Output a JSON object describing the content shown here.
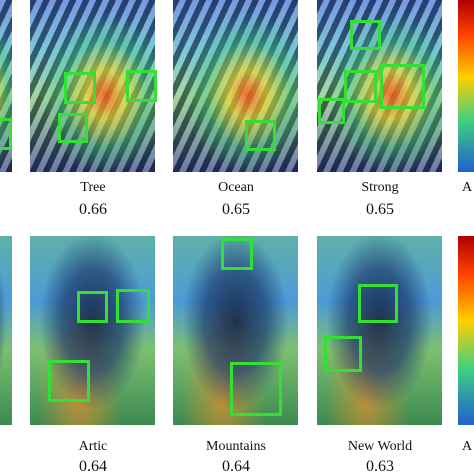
{
  "rows": [
    {
      "panels": [
        {
          "label": "Tree",
          "score": 0.66
        },
        {
          "label": "Ocean",
          "score": 0.65
        },
        {
          "label": "Strong",
          "score": 0.65
        }
      ],
      "cut_label": "A"
    },
    {
      "panels": [
        {
          "label": "Artic",
          "score": 0.64
        },
        {
          "label": "Mountains",
          "score": 0.64
        },
        {
          "label": "New World",
          "score": 0.63
        }
      ],
      "cut_label": "A"
    }
  ]
}
